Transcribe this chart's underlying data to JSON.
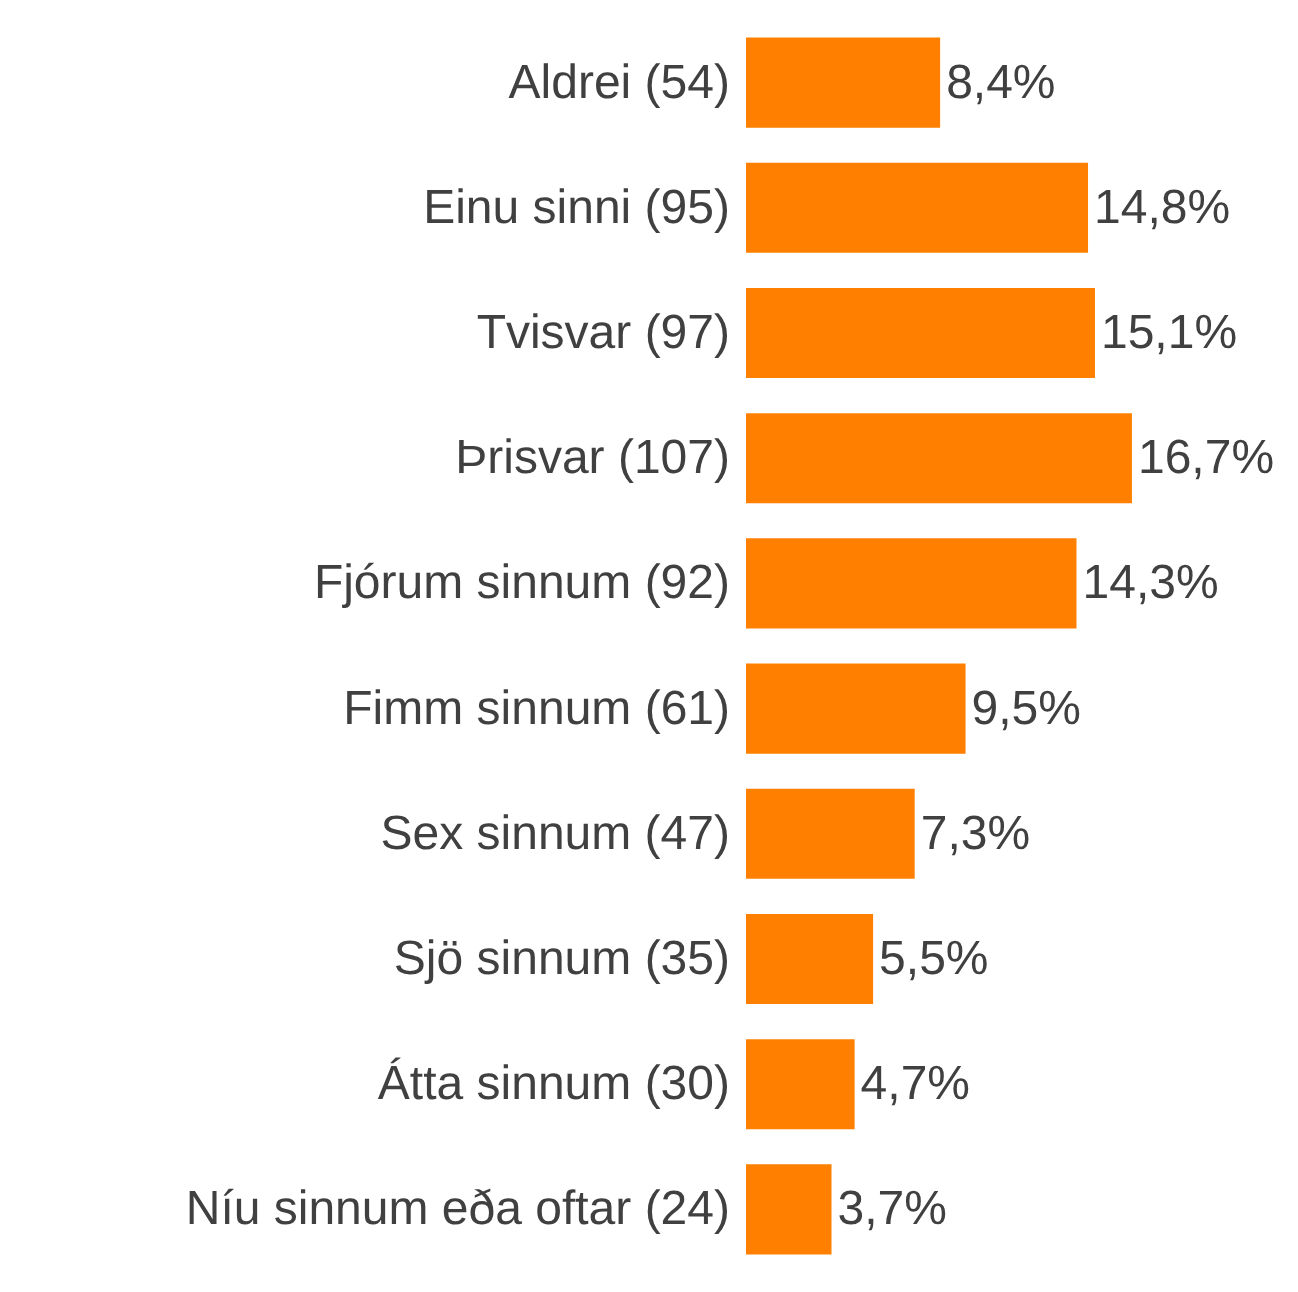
{
  "chart_data": {
    "type": "bar",
    "orientation": "horizontal",
    "categories": [
      "Aldrei (54)",
      "Einu sinni (95)",
      "Tvisvar (97)",
      "Þrisvar (107)",
      "Fjórum sinnum (92)",
      "Fimm sinnum (61)",
      "Sex sinnum (47)",
      "Sjö sinnum (35)",
      "Átta sinnum (30)",
      "Níu sinnum eða oftar (24)"
    ],
    "values": [
      8.4,
      14.8,
      15.1,
      16.7,
      14.3,
      9.5,
      7.3,
      5.5,
      4.7,
      3.7
    ],
    "value_labels": [
      "8,4%",
      "14,8%",
      "15,1%",
      "16,7%",
      "14,3%",
      "9,5%",
      "7,3%",
      "5,5%",
      "4,7%",
      "3,7%"
    ],
    "color": "#ff8000"
  }
}
